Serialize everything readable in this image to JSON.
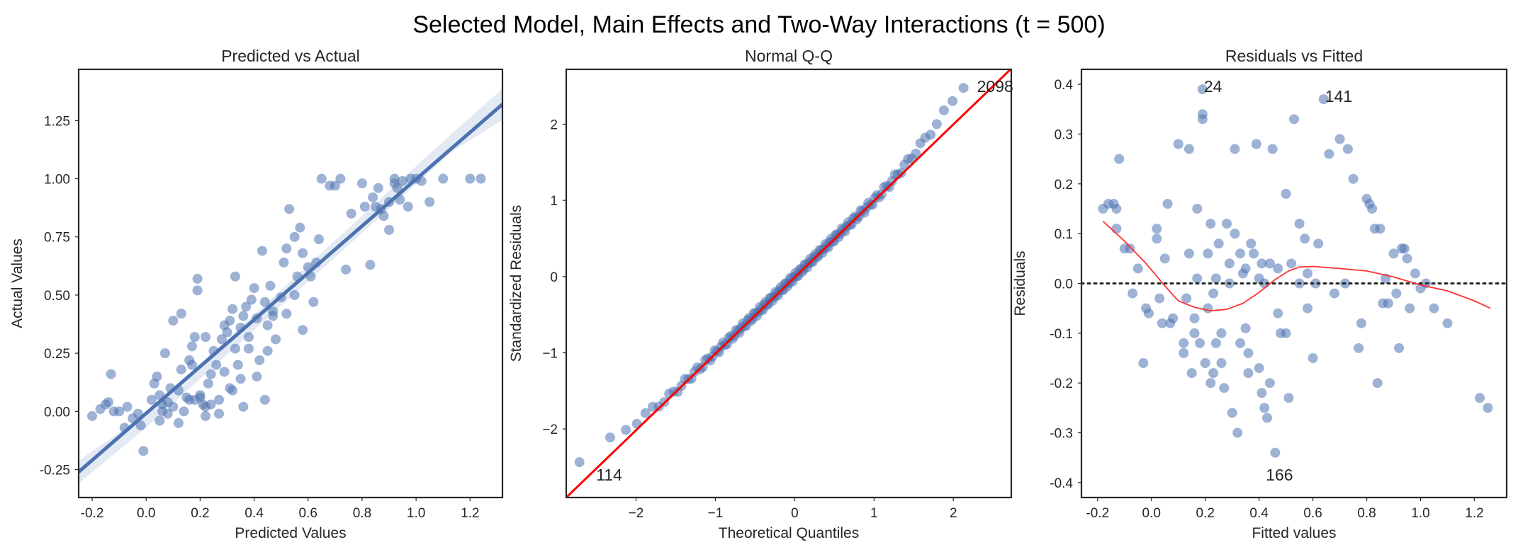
{
  "suptitle": "Selected Model, Main Effects and Two-Way Interactions (t = 500)",
  "colors": {
    "points": "#4c72b0",
    "fit_line": "#4c72b0",
    "qq_line": "#ff0000",
    "lowess": "#ff3333",
    "zero_line": "#262626",
    "frame": "#262626"
  },
  "chart_data": [
    {
      "type": "scatter",
      "title": "Predicted vs Actual",
      "xlabel": "Predicted Values",
      "ylabel": "Actual Values",
      "xlim": [
        -0.25,
        1.32
      ],
      "ylim": [
        -0.37,
        1.47
      ],
      "xticks": [
        "-0.2",
        "0.0",
        "0.2",
        "0.4",
        "0.6",
        "0.8",
        "1.0",
        "1.2"
      ],
      "xtick_values": [
        -0.2,
        0.0,
        0.2,
        0.4,
        0.6,
        0.8,
        1.0,
        1.2
      ],
      "yticks": [
        "-0.25",
        "0.00",
        "0.25",
        "0.50",
        "0.75",
        "1.00",
        "1.25"
      ],
      "ytick_values": [
        -0.25,
        0.0,
        0.25,
        0.5,
        0.75,
        1.0,
        1.25
      ],
      "regression_line": {
        "x": [
          -0.25,
          1.32
        ],
        "y": [
          -0.26,
          1.32
        ],
        "ci": true
      },
      "points": [
        [
          -0.2,
          -0.02
        ],
        [
          -0.17,
          0.01
        ],
        [
          -0.15,
          0.03
        ],
        [
          -0.14,
          0.04
        ],
        [
          -0.13,
          0.16
        ],
        [
          -0.12,
          0.0
        ],
        [
          -0.1,
          0.0
        ],
        [
          -0.08,
          -0.07
        ],
        [
          -0.07,
          0.02
        ],
        [
          -0.05,
          -0.03
        ],
        [
          -0.03,
          -0.01
        ],
        [
          -0.02,
          -0.06
        ],
        [
          -0.01,
          -0.17
        ],
        [
          0.02,
          0.05
        ],
        [
          0.03,
          0.12
        ],
        [
          0.04,
          0.15
        ],
        [
          0.05,
          0.07
        ],
        [
          0.05,
          -0.04
        ],
        [
          0.06,
          0.0
        ],
        [
          0.07,
          0.25
        ],
        [
          0.08,
          0.04
        ],
        [
          0.09,
          0.1
        ],
        [
          0.1,
          0.39
        ],
        [
          0.12,
          -0.05
        ],
        [
          0.13,
          0.18
        ],
        [
          0.13,
          0.42
        ],
        [
          0.15,
          0.06
        ],
        [
          0.16,
          0.05
        ],
        [
          0.17,
          0.2
        ],
        [
          0.17,
          0.28
        ],
        [
          0.18,
          0.32
        ],
        [
          0.19,
          0.52
        ],
        [
          0.19,
          0.57
        ],
        [
          0.2,
          0.07
        ],
        [
          0.21,
          0.03
        ],
        [
          0.22,
          0.32
        ],
        [
          0.22,
          0.02
        ],
        [
          0.24,
          0.16
        ],
        [
          0.25,
          0.26
        ],
        [
          0.26,
          0.2
        ],
        [
          0.28,
          0.31
        ],
        [
          0.29,
          0.17
        ],
        [
          0.3,
          0.34
        ],
        [
          0.31,
          0.39
        ],
        [
          0.31,
          0.1
        ],
        [
          0.32,
          0.44
        ],
        [
          0.33,
          0.58
        ],
        [
          0.34,
          0.2
        ],
        [
          0.35,
          0.36
        ],
        [
          0.36,
          0.41
        ],
        [
          0.37,
          0.45
        ],
        [
          0.38,
          0.27
        ],
        [
          0.4,
          0.53
        ],
        [
          0.41,
          0.4
        ],
        [
          0.42,
          0.22
        ],
        [
          0.43,
          0.69
        ],
        [
          0.44,
          0.47
        ],
        [
          0.45,
          0.37
        ],
        [
          0.46,
          0.54
        ],
        [
          0.47,
          0.41
        ],
        [
          0.48,
          0.31
        ],
        [
          0.5,
          0.49
        ],
        [
          0.51,
          0.64
        ],
        [
          0.52,
          0.7
        ],
        [
          0.53,
          0.87
        ],
        [
          0.55,
          0.75
        ],
        [
          0.56,
          0.58
        ],
        [
          0.57,
          0.79
        ],
        [
          0.58,
          0.35
        ],
        [
          0.6,
          0.62
        ],
        [
          0.61,
          0.58
        ],
        [
          0.62,
          0.47
        ],
        [
          0.64,
          0.74
        ],
        [
          0.65,
          1.0
        ],
        [
          0.68,
          0.97
        ],
        [
          0.7,
          0.97
        ],
        [
          0.72,
          1.0
        ],
        [
          0.74,
          0.61
        ],
        [
          0.76,
          0.85
        ],
        [
          0.8,
          0.98
        ],
        [
          0.81,
          0.88
        ],
        [
          0.83,
          0.63
        ],
        [
          0.84,
          0.92
        ],
        [
          0.86,
          0.96
        ],
        [
          0.87,
          0.87
        ],
        [
          0.9,
          0.9
        ],
        [
          0.9,
          0.78
        ],
        [
          0.92,
          0.98
        ],
        [
          0.92,
          1.0
        ],
        [
          0.94,
          0.91
        ],
        [
          0.95,
          0.99
        ],
        [
          0.97,
          0.88
        ],
        [
          0.98,
          1.0
        ],
        [
          1.0,
          1.0
        ],
        [
          1.02,
          0.99
        ],
        [
          1.05,
          0.9
        ],
        [
          1.1,
          1.0
        ],
        [
          1.2,
          1.0
        ],
        [
          1.24,
          1.0
        ],
        [
          0.27,
          -0.01
        ],
        [
          0.22,
          -0.02
        ],
        [
          0.35,
          0.14
        ],
        [
          0.36,
          0.02
        ],
        [
          0.14,
          0.0
        ],
        [
          0.18,
          0.05
        ],
        [
          0.24,
          0.03
        ],
        [
          0.27,
          0.05
        ],
        [
          0.32,
          0.09
        ],
        [
          0.44,
          0.05
        ],
        [
          0.12,
          0.09
        ],
        [
          0.06,
          0.03
        ],
        [
          0.08,
          -0.01
        ],
        [
          0.38,
          0.32
        ],
        [
          0.41,
          0.15
        ],
        [
          0.45,
          0.26
        ],
        [
          0.47,
          0.43
        ],
        [
          0.52,
          0.42
        ],
        [
          0.55,
          0.5
        ],
        [
          0.58,
          0.68
        ],
        [
          0.63,
          0.64
        ],
        [
          0.85,
          0.88
        ],
        [
          0.88,
          0.84
        ],
        [
          0.93,
          0.96
        ],
        [
          0.2,
          0.06
        ],
        [
          0.23,
          0.12
        ],
        [
          0.29,
          0.37
        ],
        [
          0.33,
          0.27
        ],
        [
          0.39,
          0.48
        ],
        [
          0.1,
          0.02
        ],
        [
          0.16,
          0.22
        ]
      ]
    },
    {
      "type": "scatter",
      "title": "Normal Q-Q",
      "xlabel": "Theoretical Quantiles",
      "ylabel": "Standardized Residuals",
      "xlim": [
        -2.88,
        2.73
      ],
      "ylim": [
        -2.9,
        2.72
      ],
      "xticks": [
        "−2",
        "−1",
        "0",
        "1",
        "2"
      ],
      "xtick_values": [
        -2,
        -1,
        0,
        1,
        2
      ],
      "yticks": [
        "−2",
        "−1",
        "0",
        "1",
        "2"
      ],
      "ytick_values": [
        -2,
        -1,
        0,
        1,
        2
      ],
      "reference_line": {
        "x": [
          -2.88,
          2.73
        ],
        "y": [
          -2.9,
          2.73
        ]
      },
      "n_points": 150,
      "annotations": [
        {
          "text": "2098",
          "x": 2.28,
          "y": 2.46
        },
        {
          "text": "114",
          "x": -2.52,
          "y": -2.64
        }
      ]
    },
    {
      "type": "scatter",
      "title": "Residuals vs Fitted",
      "xlabel": "Fitted values",
      "ylabel": "Residuals",
      "xlim": [
        -0.26,
        1.32
      ],
      "ylim": [
        -0.43,
        0.43
      ],
      "xticks": [
        "-0.2",
        "0.0",
        "0.2",
        "0.4",
        "0.6",
        "0.8",
        "1.0",
        "1.2"
      ],
      "xtick_values": [
        -0.2,
        0.0,
        0.2,
        0.4,
        0.6,
        0.8,
        1.0,
        1.2
      ],
      "yticks": [
        "-0.4",
        "-0.3",
        "-0.2",
        "-0.1",
        "0.0",
        "0.1",
        "0.2",
        "0.3",
        "0.4"
      ],
      "ytick_values": [
        -0.4,
        -0.3,
        -0.2,
        -0.1,
        0.0,
        0.1,
        0.2,
        0.3,
        0.4
      ],
      "zero_line": 0.0,
      "lowess": [
        [
          -0.18,
          0.125
        ],
        [
          -0.1,
          0.085
        ],
        [
          -0.02,
          0.04
        ],
        [
          0.05,
          -0.005
        ],
        [
          0.1,
          -0.035
        ],
        [
          0.16,
          -0.048
        ],
        [
          0.22,
          -0.055
        ],
        [
          0.28,
          -0.052
        ],
        [
          0.34,
          -0.04
        ],
        [
          0.4,
          -0.018
        ],
        [
          0.46,
          0.008
        ],
        [
          0.51,
          0.025
        ],
        [
          0.55,
          0.033
        ],
        [
          0.6,
          0.034
        ],
        [
          0.7,
          0.03
        ],
        [
          0.8,
          0.025
        ],
        [
          0.9,
          0.013
        ],
        [
          1.0,
          -0.003
        ],
        [
          1.1,
          -0.015
        ],
        [
          1.2,
          -0.035
        ],
        [
          1.26,
          -0.05
        ]
      ],
      "points": [
        [
          -0.18,
          0.15
        ],
        [
          -0.16,
          0.16
        ],
        [
          -0.14,
          0.16
        ],
        [
          -0.13,
          0.15
        ],
        [
          -0.12,
          0.25
        ],
        [
          -0.13,
          0.11
        ],
        [
          -0.1,
          0.07
        ],
        [
          -0.08,
          0.07
        ],
        [
          -0.07,
          -0.02
        ],
        [
          -0.05,
          0.03
        ],
        [
          -0.03,
          -0.16
        ],
        [
          -0.02,
          -0.05
        ],
        [
          -0.01,
          -0.06
        ],
        [
          0.02,
          0.11
        ],
        [
          0.02,
          0.09
        ],
        [
          0.03,
          -0.03
        ],
        [
          0.04,
          -0.08
        ],
        [
          0.05,
          0.05
        ],
        [
          0.06,
          0.16
        ],
        [
          0.07,
          -0.08
        ],
        [
          0.08,
          -0.07
        ],
        [
          0.1,
          0.28
        ],
        [
          0.12,
          -0.12
        ],
        [
          0.12,
          -0.14
        ],
        [
          0.13,
          -0.03
        ],
        [
          0.14,
          0.27
        ],
        [
          0.15,
          -0.18
        ],
        [
          0.16,
          -0.1
        ],
        [
          0.17,
          0.15
        ],
        [
          0.18,
          -0.12
        ],
        [
          0.19,
          0.33
        ],
        [
          0.19,
          0.39
        ],
        [
          0.19,
          0.34
        ],
        [
          0.2,
          -0.16
        ],
        [
          0.21,
          0.06
        ],
        [
          0.22,
          0.12
        ],
        [
          0.22,
          -0.2
        ],
        [
          0.23,
          -0.02
        ],
        [
          0.24,
          -0.12
        ],
        [
          0.25,
          0.08
        ],
        [
          0.26,
          -0.16
        ],
        [
          0.27,
          -0.21
        ],
        [
          0.28,
          0.12
        ],
        [
          0.29,
          0.04
        ],
        [
          0.3,
          -0.26
        ],
        [
          0.31,
          0.27
        ],
        [
          0.31,
          0.1
        ],
        [
          0.32,
          -0.3
        ],
        [
          0.33,
          0.06
        ],
        [
          0.34,
          0.02
        ],
        [
          0.35,
          0.03
        ],
        [
          0.36,
          -0.18
        ],
        [
          0.37,
          0.08
        ],
        [
          0.38,
          0.06
        ],
        [
          0.39,
          0.28
        ],
        [
          0.4,
          -0.17
        ],
        [
          0.41,
          0.04
        ],
        [
          0.42,
          -0.25
        ],
        [
          0.42,
          0.0
        ],
        [
          0.43,
          -0.27
        ],
        [
          0.44,
          0.04
        ],
        [
          0.45,
          0.27
        ],
        [
          0.46,
          -0.34
        ],
        [
          0.47,
          0.03
        ],
        [
          0.48,
          -0.1
        ],
        [
          0.5,
          0.18
        ],
        [
          0.52,
          0.04
        ],
        [
          0.53,
          0.33
        ],
        [
          0.55,
          0.12
        ],
        [
          0.57,
          0.09
        ],
        [
          0.58,
          0.02
        ],
        [
          0.6,
          -0.15
        ],
        [
          0.62,
          0.08
        ],
        [
          0.64,
          0.37
        ],
        [
          0.66,
          0.26
        ],
        [
          0.7,
          0.29
        ],
        [
          0.73,
          0.27
        ],
        [
          0.75,
          0.21
        ],
        [
          0.77,
          -0.13
        ],
        [
          0.8,
          0.17
        ],
        [
          0.81,
          0.16
        ],
        [
          0.82,
          0.15
        ],
        [
          0.83,
          0.11
        ],
        [
          0.84,
          -0.2
        ],
        [
          0.85,
          0.11
        ],
        [
          0.87,
          0.01
        ],
        [
          0.88,
          -0.04
        ],
        [
          0.9,
          0.06
        ],
        [
          0.91,
          -0.02
        ],
        [
          0.93,
          0.07
        ],
        [
          0.94,
          0.07
        ],
        [
          0.95,
          0.05
        ],
        [
          0.96,
          -0.05
        ],
        [
          0.98,
          0.02
        ],
        [
          1.0,
          -0.01
        ],
        [
          1.02,
          0.0
        ],
        [
          1.05,
          -0.05
        ],
        [
          1.1,
          -0.08
        ],
        [
          1.22,
          -0.23
        ],
        [
          1.25,
          -0.25
        ],
        [
          0.14,
          0.06
        ],
        [
          0.17,
          0.01
        ],
        [
          0.21,
          -0.05
        ],
        [
          0.24,
          0.01
        ],
        [
          0.26,
          -0.1
        ],
        [
          0.29,
          0.0
        ],
        [
          0.33,
          -0.12
        ],
        [
          0.36,
          -0.14
        ],
        [
          0.4,
          0.01
        ],
        [
          0.44,
          -0.2
        ],
        [
          0.47,
          -0.06
        ],
        [
          0.51,
          -0.23
        ],
        [
          0.55,
          0.0
        ],
        [
          0.58,
          -0.05
        ],
        [
          0.61,
          0.0
        ],
        [
          0.68,
          -0.02
        ],
        [
          0.72,
          0.0
        ],
        [
          0.78,
          -0.08
        ],
        [
          0.86,
          -0.04
        ],
        [
          0.92,
          -0.13
        ],
        [
          0.16,
          -0.07
        ],
        [
          0.23,
          -0.18
        ],
        [
          0.35,
          -0.09
        ],
        [
          0.41,
          -0.22
        ],
        [
          0.5,
          -0.1
        ]
      ],
      "annotations": [
        {
          "text": "24",
          "x": 0.19,
          "y": 0.39
        },
        {
          "text": "141",
          "x": 0.64,
          "y": 0.37
        },
        {
          "text": "166",
          "x": 0.42,
          "y": -0.39
        }
      ]
    }
  ]
}
